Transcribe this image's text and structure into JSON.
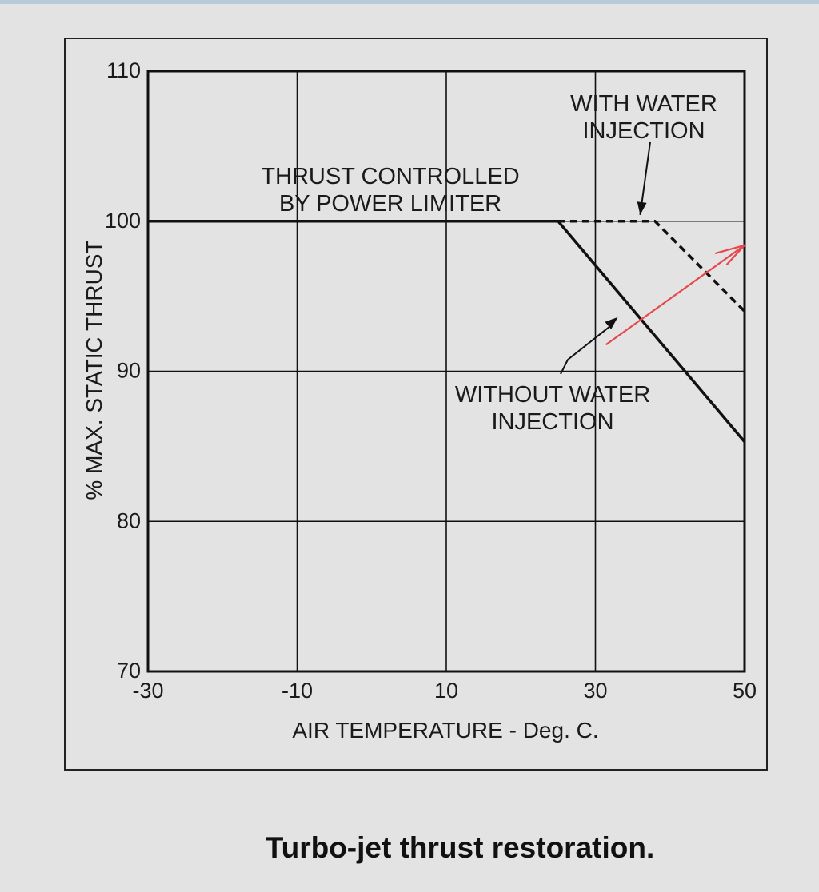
{
  "caption": "Turbo-jet thrust restoration.",
  "chart_data": {
    "type": "line",
    "xlabel": "AIR TEMPERATURE - Deg. C.",
    "ylabel": "% MAX. STATIC THRUST",
    "xlim": [
      -30,
      50
    ],
    "ylim": [
      70,
      110
    ],
    "x_ticks": [
      -30,
      -10,
      10,
      30,
      50
    ],
    "y_ticks": [
      70,
      80,
      90,
      100,
      110
    ],
    "grid": true,
    "series": [
      {
        "name": "WITHOUT WATER INJECTION",
        "style": "solid",
        "color": "#111111",
        "x": [
          -30,
          25,
          50
        ],
        "y": [
          100,
          100,
          85.3
        ]
      },
      {
        "name": "WITH WATER INJECTION",
        "style": "dashed",
        "color": "#111111",
        "x": [
          25,
          38,
          50
        ],
        "y": [
          100,
          100,
          94
        ]
      }
    ],
    "annotations": [
      {
        "id": "limiter",
        "lines": [
          "THRUST CONTROLLED",
          "BY POWER LIMITER"
        ]
      },
      {
        "id": "with",
        "lines": [
          "WITH WATER",
          "INJECTION"
        ],
        "arrow_to": [
          36,
          100.1
        ]
      },
      {
        "id": "without",
        "lines": [
          "WITHOUT WATER",
          "INJECTION"
        ],
        "arrow_to": [
          33,
          93.6
        ]
      }
    ],
    "red_arrow": {
      "color": "#e8474d",
      "from": [
        31.5,
        91.8
      ],
      "to": [
        50,
        98.4
      ]
    }
  }
}
